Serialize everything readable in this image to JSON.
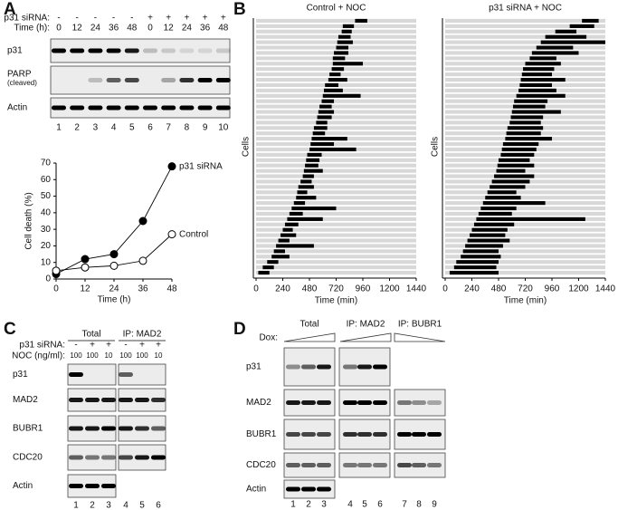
{
  "panel_labels": [
    "A",
    "B",
    "C",
    "D"
  ],
  "blot_a": {
    "sirna_label": "p31 siRNA:",
    "sirna": [
      "-",
      "-",
      "-",
      "-",
      "-",
      "+",
      "+",
      "+",
      "+",
      "+"
    ],
    "time_label": "Time (h):",
    "times": [
      0,
      12,
      24,
      36,
      48,
      0,
      12,
      24,
      36,
      48
    ],
    "rows": [
      "p31",
      "PARP",
      "Actin"
    ],
    "parp_note": "(cleaved)",
    "lanes": [
      1,
      2,
      3,
      4,
      5,
      6,
      7,
      8,
      9,
      10
    ]
  },
  "blot_c": {
    "groups": [
      "Total",
      "IP: MAD2"
    ],
    "sirna_label": "p31 siRNA:",
    "sirna": [
      "-",
      "+",
      "+",
      "-",
      "+",
      "+"
    ],
    "noc_label": "NOC (ng/ml):",
    "noc": [
      100,
      100,
      10,
      100,
      100,
      10
    ],
    "rows": [
      "p31",
      "MAD2",
      "BUBR1",
      "CDC20",
      "Actin"
    ],
    "lanes": [
      1,
      2,
      3,
      4,
      5,
      6
    ]
  },
  "blot_d": {
    "dox_label": "Dox:",
    "groups": [
      "Total",
      "IP: MAD2",
      "IP: BUBR1"
    ],
    "rows": [
      "p31",
      "MAD2",
      "BUBR1",
      "CDC20",
      "Actin"
    ],
    "lanes": [
      1,
      2,
      3,
      4,
      5,
      6,
      7,
      8,
      9
    ]
  },
  "chart_data": [
    {
      "type": "line",
      "xlabel": "Time (h)",
      "ylabel": "Cell death (%)",
      "x": [
        0,
        12,
        24,
        36,
        48
      ],
      "xlim": [
        0,
        48
      ],
      "xticks": [
        0,
        12,
        24,
        36,
        48
      ],
      "ylim": [
        0,
        70
      ],
      "yticks": [
        0,
        10,
        20,
        30,
        40,
        50,
        60,
        70
      ],
      "series": [
        {
          "name": "p31 siRNA",
          "color": "#000000",
          "marker": "filled",
          "values": [
            3,
            12,
            15,
            35,
            68
          ]
        },
        {
          "name": "Control",
          "color": "#000000",
          "marker": "open",
          "values": [
            5,
            7,
            8,
            11,
            27
          ]
        }
      ]
    },
    {
      "type": "timeline",
      "title": "Control + NOC",
      "xlabel": "Time (min)",
      "ylabel": "Cells",
      "xlim": [
        0,
        1440
      ],
      "xticks": [
        0,
        240,
        480,
        720,
        960,
        1200,
        1440
      ],
      "color": "#000000",
      "start": [
        890,
        780,
        770,
        740,
        730,
        720,
        700,
        690,
        690,
        680,
        660,
        650,
        620,
        610,
        600,
        590,
        570,
        560,
        550,
        540,
        520,
        510,
        500,
        490,
        480,
        460,
        450,
        440,
        430,
        420,
        400,
        380,
        370,
        360,
        340,
        320,
        300,
        280,
        260,
        240,
        220,
        200,
        180,
        160,
        140,
        100,
        60,
        20
      ],
      "end": [
        1000,
        880,
        860,
        850,
        870,
        830,
        830,
        800,
        960,
        790,
        760,
        820,
        740,
        780,
        940,
        700,
        680,
        700,
        680,
        640,
        640,
        620,
        820,
        700,
        900,
        590,
        570,
        560,
        600,
        520,
        500,
        520,
        460,
        540,
        440,
        720,
        420,
        600,
        380,
        330,
        360,
        300,
        520,
        260,
        300,
        200,
        160,
        120
      ]
    },
    {
      "type": "timeline",
      "title": "p31 siRNA + NOC",
      "xlabel": "Time (min)",
      "ylabel": "Cells",
      "xlim": [
        0,
        1440
      ],
      "xticks": [
        0,
        240,
        480,
        720,
        960,
        1200,
        1440
      ],
      "color": "#000000",
      "start": [
        1230,
        1120,
        990,
        900,
        860,
        820,
        780,
        760,
        720,
        700,
        690,
        680,
        670,
        660,
        640,
        620,
        610,
        600,
        590,
        580,
        560,
        550,
        540,
        520,
        510,
        500,
        480,
        470,
        460,
        440,
        420,
        400,
        380,
        360,
        340,
        320,
        300,
        280,
        260,
        240,
        220,
        200,
        180,
        160,
        140,
        100,
        80,
        40
      ],
      "end": [
        1380,
        1340,
        1180,
        1270,
        1440,
        1150,
        1200,
        1000,
        1040,
        980,
        960,
        1080,
        960,
        1000,
        1080,
        920,
        900,
        1040,
        880,
        860,
        880,
        860,
        960,
        840,
        820,
        800,
        760,
        800,
        720,
        800,
        760,
        720,
        640,
        680,
        900,
        640,
        600,
        1260,
        620,
        560,
        540,
        580,
        520,
        480,
        500,
        480,
        460,
        480
      ]
    }
  ]
}
